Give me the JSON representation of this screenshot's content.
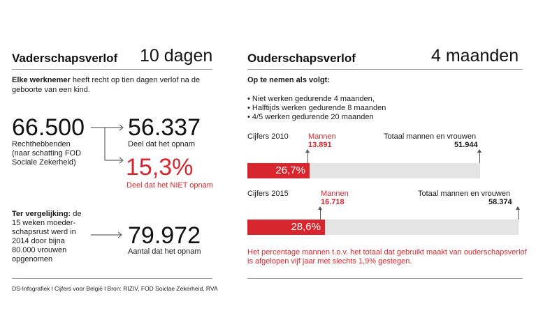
{
  "left": {
    "title": "Vaderschapsverlof",
    "headline": "10 dagen",
    "intro_bold": "Elke werknemer",
    "intro_line1": " heeft recht op tien dagen verlof na de",
    "intro_line2": "geboorte van een kind.",
    "rights_value": "66.500",
    "rights_label_1": "Rechthebbenden",
    "rights_label_2": "(naar schatting FOD",
    "rights_label_3": "Sociale Zekerheid)",
    "taken_value": "56.337",
    "taken_label": "Deel dat het opnam",
    "not_taken_value": "15,3%",
    "not_taken_label": "Deel dat het NIET opnam",
    "compare_bold": "Ter vergelijking:",
    "compare_line1": " de",
    "compare_line2": "15 weken moeder-",
    "compare_line3": "schapsrust werd in",
    "compare_line4": "2014 door bijna",
    "compare_line5": "80.000 vrouwen",
    "compare_line6": "opgenomen",
    "maternity_value": "79.972",
    "maternity_label": "Aantal dat het opnam",
    "source": "DS-Infografiek l Cijfers voor België l Bron: RIZIV, FOD Soiclae Zekerheid, RVA"
  },
  "right": {
    "title": "Ouderschapsverlof",
    "headline": "4 maanden",
    "subtitle": "Op te nemen als volgt:",
    "bullets": [
      "• Niet werken gedurende 4 maanden,",
      "• Halftijds werken gedurende 8 maanden",
      "• 4/5 werken gedurende 20 maanden"
    ],
    "year_2010": {
      "label": "Cijfers 2010",
      "men_label": "Mannen",
      "men_value": "13.891",
      "total_label": "Totaal mannen en vrouwen",
      "total_value": "51.944",
      "percent_label": "26,7%",
      "percent": 26.7
    },
    "year_2015": {
      "label": "Cijfers 2015",
      "men_label": "Mannen",
      "men_value": "16.718",
      "total_label": "Totaal mannen en vrouwen",
      "total_value": "58.374",
      "percent_label": "28,6%",
      "percent": 28.6
    },
    "note_line1": "Het percentage mannen t.o.v. het totaal dat gebruikt maakt van ouderschapsverlof",
    "note_line2": "is afgelopen vijf jaar met slechts 1,9% gestegen."
  },
  "colors": {
    "accent": "#d7262e",
    "bar_background": "#e4e4e4",
    "text": "#1a1a1a"
  }
}
